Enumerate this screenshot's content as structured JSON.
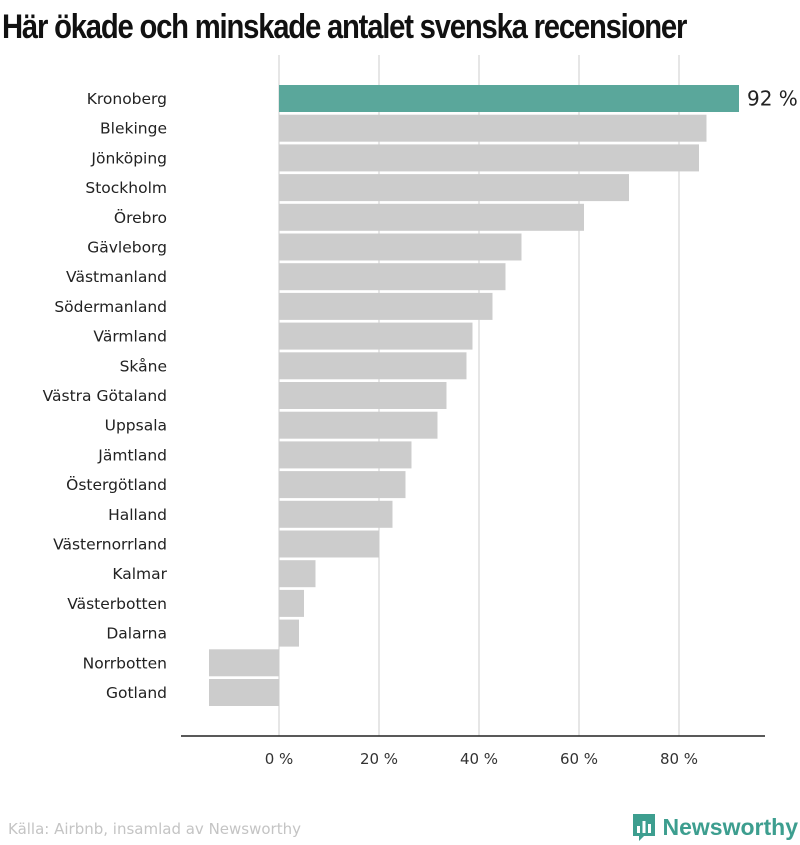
{
  "title": "Här ökade och minskade antalet svenska recensioner",
  "footer": {
    "source": "Källa: Airbnb, insamlad av Newsworthy",
    "brand_name": "Newsworthy",
    "brand_icon": "newsworthy-logo-icon"
  },
  "colors": {
    "highlight": "#5aa79b",
    "bar": "#cccccc",
    "grid": "#d8d8d8",
    "axis": "#222222",
    "brand": "#3d9e8f"
  },
  "chart_data": {
    "type": "bar",
    "orientation": "horizontal",
    "title": "Här ökade och minskade antalet svenska recensioner",
    "categories": [
      "Kronoberg",
      "Blekinge",
      "Jönköping",
      "Stockholm",
      "Örebro",
      "Gävleborg",
      "Västmanland",
      "Södermanland",
      "Värmland",
      "Skåne",
      "Västra Götaland",
      "Uppsala",
      "Jämtland",
      "Östergötland",
      "Halland",
      "Västernorrland",
      "Kalmar",
      "Västerbotten",
      "Dalarna",
      "Norrbotten",
      "Gotland"
    ],
    "values": [
      92,
      85.5,
      84,
      70,
      61,
      48.5,
      45.3,
      42.7,
      38.7,
      37.5,
      33.5,
      31.7,
      26.5,
      25.3,
      22.7,
      20,
      7.3,
      5,
      4,
      -14,
      -14
    ],
    "highlight_index": 0,
    "value_labels": [
      "92 %"
    ],
    "xlim": [
      -20,
      97
    ],
    "xticks": [
      0,
      20,
      40,
      60,
      80
    ],
    "xtick_labels": [
      "0 %",
      "20 %",
      "40 %",
      "60 %",
      "80 %"
    ],
    "grid": true,
    "xlabel": "",
    "ylabel": ""
  }
}
